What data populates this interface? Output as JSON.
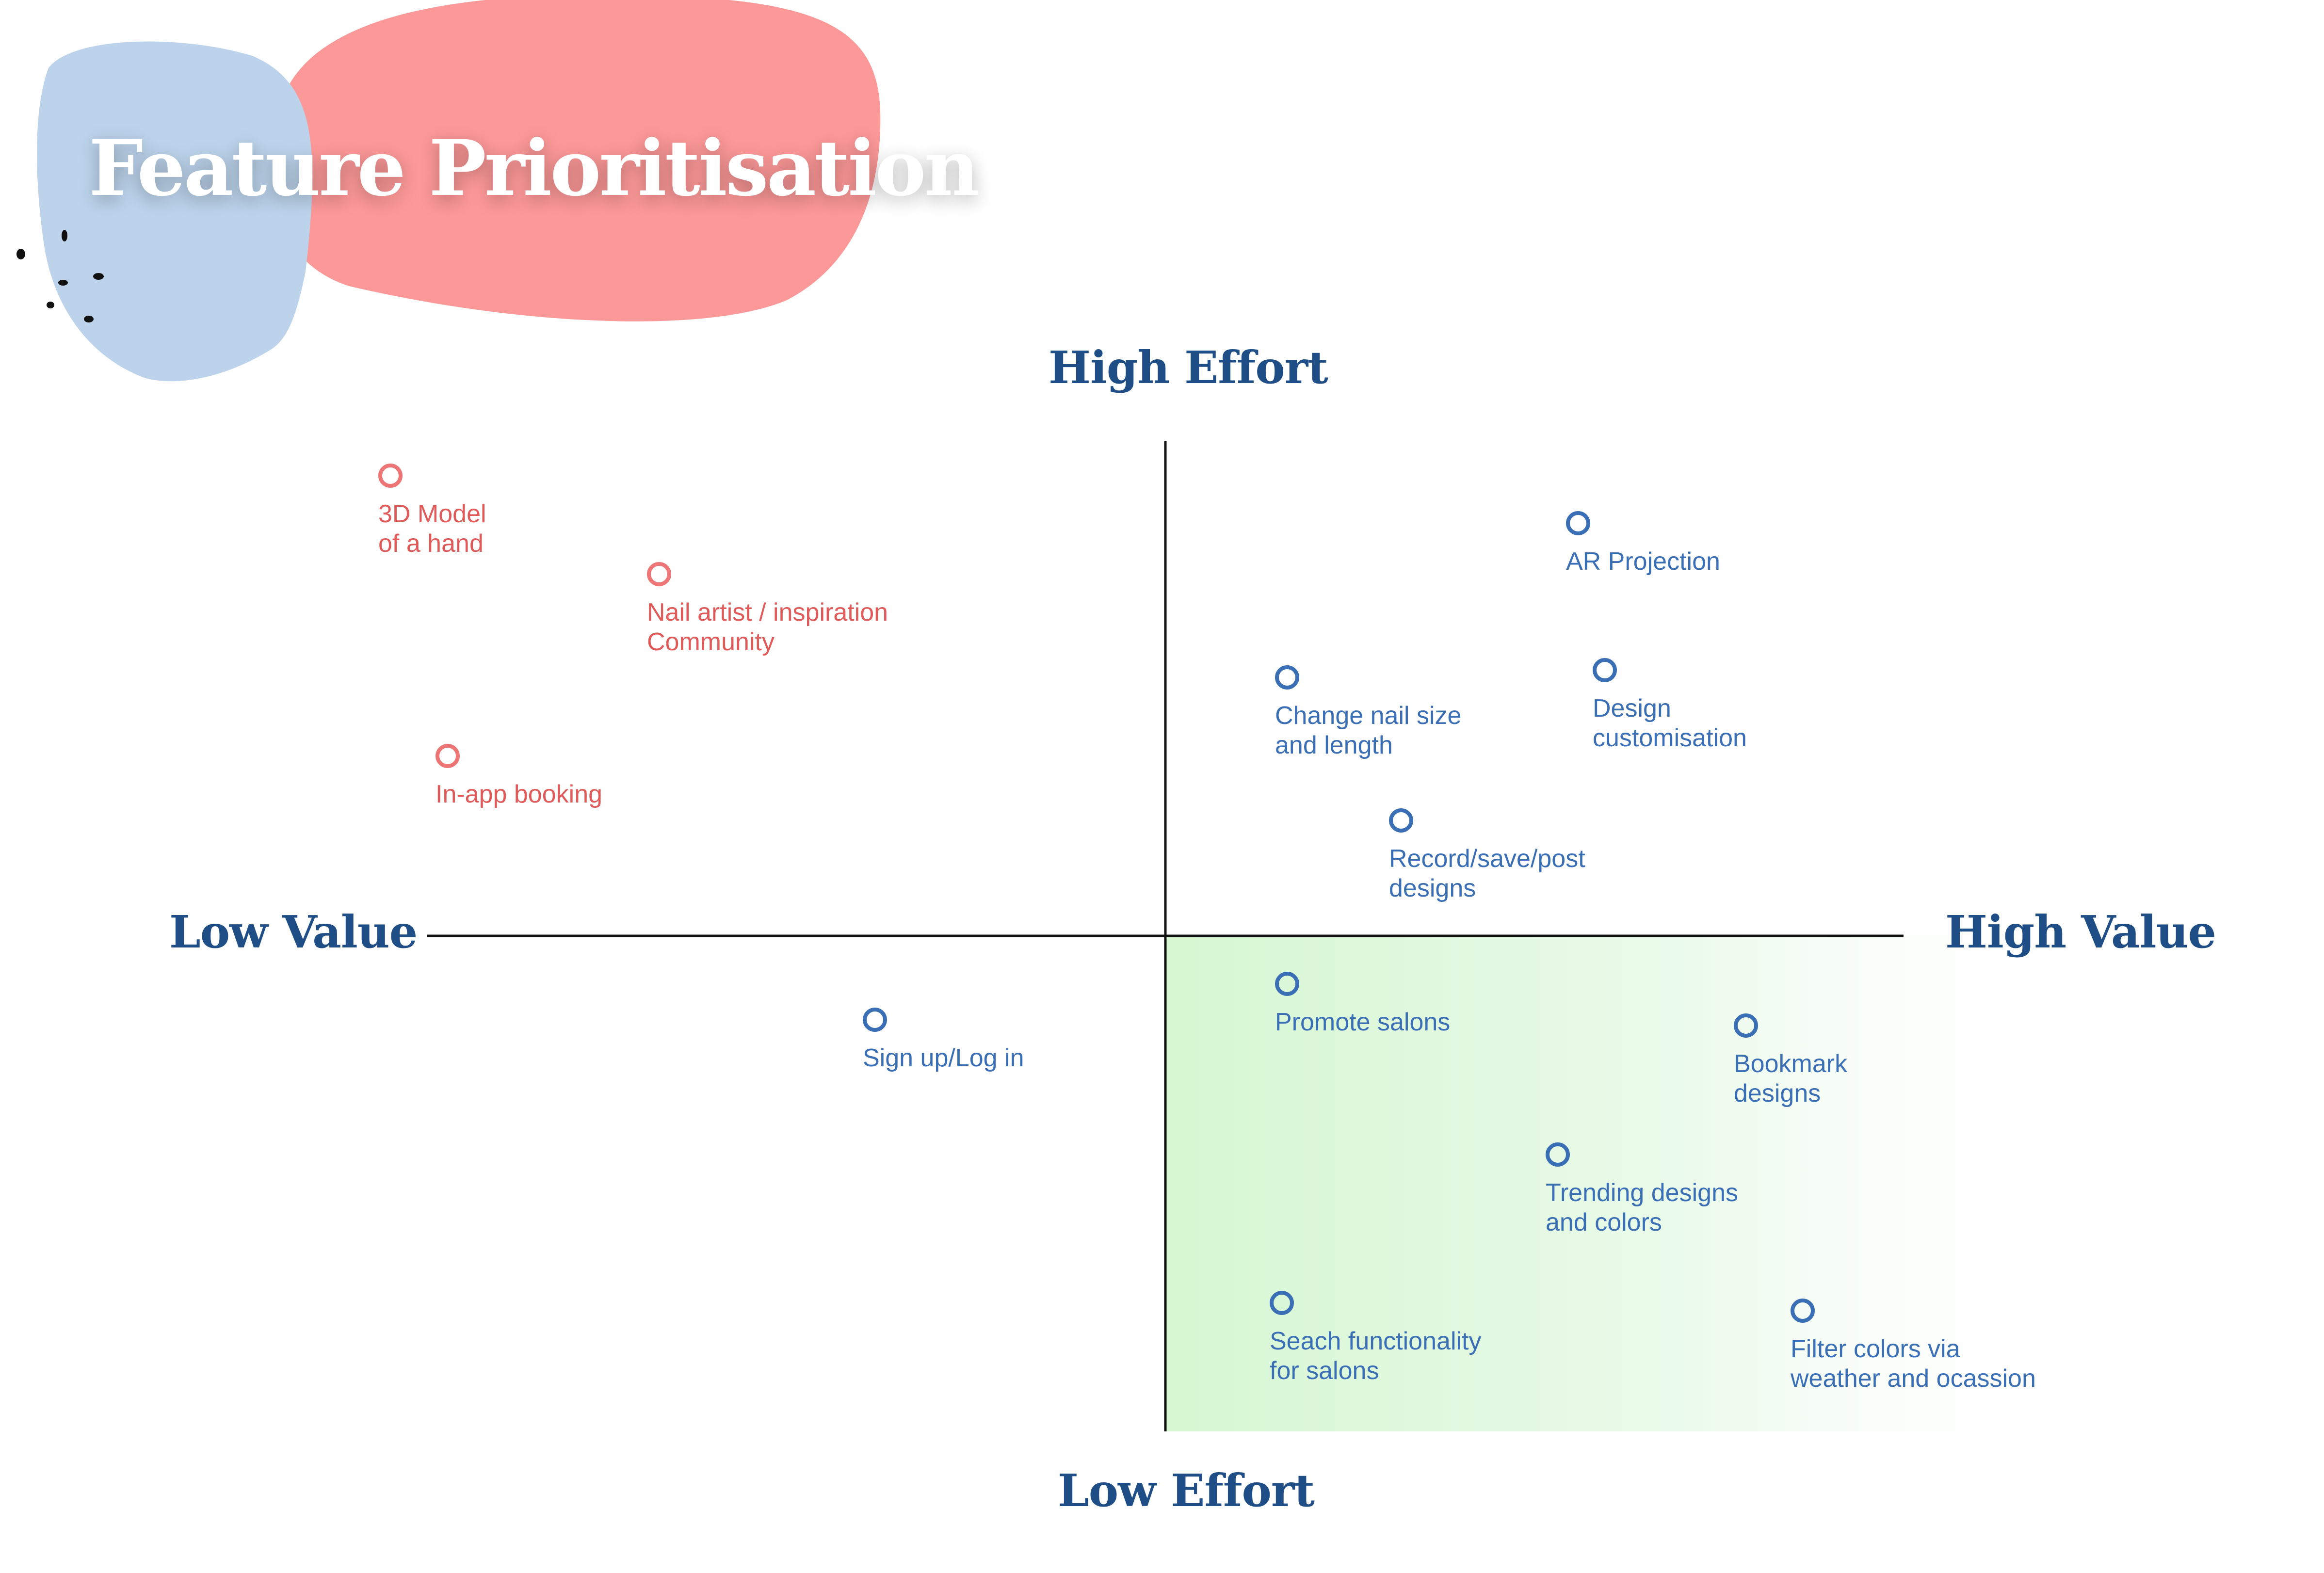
{
  "title": "Feature Prioritisation",
  "axes": {
    "top": "High Effort",
    "bottom": "Low Effort",
    "left": "Low Value",
    "right": "High Value"
  },
  "colors": {
    "axis_label": "#1f4e86",
    "high_priority_marker": "#3a6eb5",
    "low_priority_marker": "#ee7575",
    "blob_red": "#fc9898",
    "blob_blue": "#bcd3eb",
    "quick_win_fill": "#d6f7d2"
  },
  "items": [
    {
      "id": "3d-model",
      "label": "3D Model\nof a hand",
      "color": "red"
    },
    {
      "id": "nail-artist",
      "label": "Nail artist / inspiration\nCommunity",
      "color": "red"
    },
    {
      "id": "in-app-booking",
      "label": "In-app booking",
      "color": "red"
    },
    {
      "id": "sign-up",
      "label": "Sign up/Log in",
      "color": "blue"
    },
    {
      "id": "ar-projection",
      "label": "AR Projection",
      "color": "blue"
    },
    {
      "id": "change-nail-size",
      "label": "Change nail size\nand length",
      "color": "blue"
    },
    {
      "id": "design-customisation",
      "label": "Design\ncustomisation",
      "color": "blue"
    },
    {
      "id": "record-save-post",
      "label": "Record/save/post\ndesigns",
      "color": "blue"
    },
    {
      "id": "promote-salons",
      "label": "Promote salons",
      "color": "blue"
    },
    {
      "id": "bookmark-designs",
      "label": "Bookmark\ndesigns",
      "color": "blue"
    },
    {
      "id": "trending-designs",
      "label": "Trending designs\nand colors",
      "color": "blue"
    },
    {
      "id": "search-salons",
      "label": "Seach functionality\nfor salons",
      "color": "blue"
    },
    {
      "id": "filter-colors",
      "label": "Filter colors via\nweather and ocassion",
      "color": "blue"
    }
  ]
}
